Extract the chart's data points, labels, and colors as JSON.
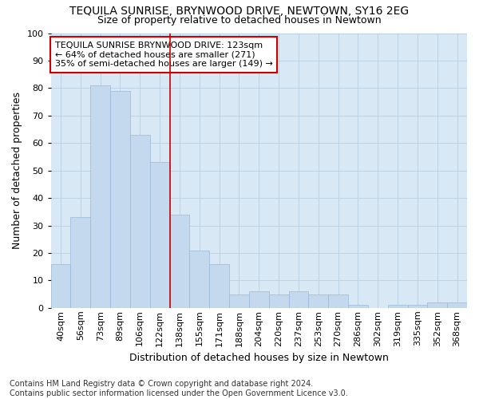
{
  "title": "TEQUILA SUNRISE, BRYNWOOD DRIVE, NEWTOWN, SY16 2EG",
  "subtitle": "Size of property relative to detached houses in Newtown",
  "xlabel": "Distribution of detached houses by size in Newtown",
  "ylabel": "Number of detached properties",
  "categories": [
    "40sqm",
    "56sqm",
    "73sqm",
    "89sqm",
    "106sqm",
    "122sqm",
    "138sqm",
    "155sqm",
    "171sqm",
    "188sqm",
    "204sqm",
    "220sqm",
    "237sqm",
    "253sqm",
    "270sqm",
    "286sqm",
    "302sqm",
    "319sqm",
    "335sqm",
    "352sqm",
    "368sqm"
  ],
  "values": [
    16,
    33,
    81,
    79,
    63,
    53,
    34,
    21,
    16,
    5,
    6,
    5,
    6,
    5,
    5,
    1,
    0,
    1,
    1,
    2,
    2
  ],
  "bar_color": "#c5d9ee",
  "bar_edge_color": "#9ab8d8",
  "vline_color": "#cc0000",
  "vline_pos": 5.5,
  "legend_text_line1": "TEQUILA SUNRISE BRYNWOOD DRIVE: 123sqm",
  "legend_text_line2": "← 64% of detached houses are smaller (271)",
  "legend_text_line3": "35% of semi-detached houses are larger (149) →",
  "legend_box_color": "#cc0000",
  "ylim": [
    0,
    100
  ],
  "yticks": [
    0,
    10,
    20,
    30,
    40,
    50,
    60,
    70,
    80,
    90,
    100
  ],
  "grid_color": "#b8cfe0",
  "background_color": "#d8e8f4",
  "footer_line1": "Contains HM Land Registry data © Crown copyright and database right 2024.",
  "footer_line2": "Contains public sector information licensed under the Open Government Licence v3.0.",
  "title_fontsize": 10,
  "subtitle_fontsize": 9,
  "ylabel_fontsize": 9,
  "xlabel_fontsize": 9,
  "tick_fontsize": 8,
  "legend_fontsize": 8,
  "footer_fontsize": 7
}
